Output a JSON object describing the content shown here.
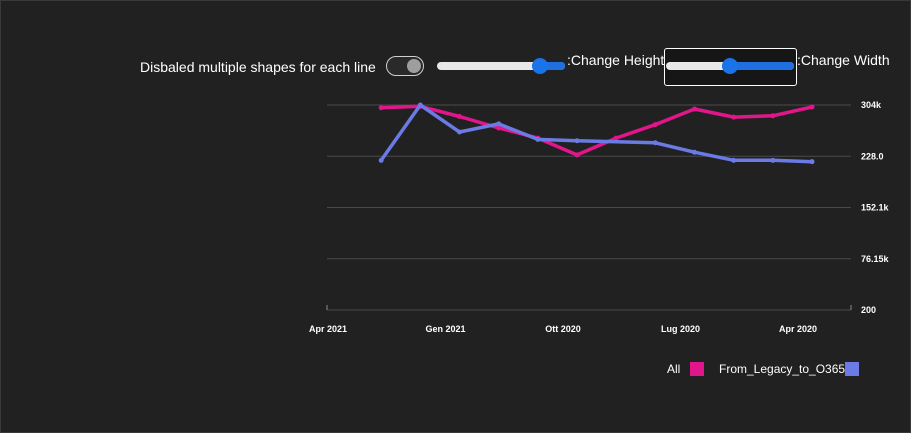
{
  "controls": {
    "toggle_label": "Disbaled multiple shapes for each line",
    "toggle_on": true,
    "height_label": ":Change Height",
    "height_value": 0.85,
    "width_label": ":Change Width",
    "width_value": 0.5
  },
  "colors": {
    "background": "#212121",
    "gridline": "#4a4a4a",
    "all": "#e0168a",
    "legacy": "#6b7be6"
  },
  "chart_data": {
    "type": "line",
    "x_ticks": [
      "Apr 2021",
      "Gen 2021",
      "Ott 2020",
      "Lug 2020",
      "Apr 2020"
    ],
    "y_ticks": [
      "304k",
      "228.0",
      "152.1k",
      "76.15k",
      "200"
    ],
    "ylim": [
      200,
      304000
    ],
    "x_axis_reversed": true,
    "y_axis_position": "right",
    "grid": true,
    "legend_position": "bottom-right",
    "series": [
      {
        "name": "All",
        "color": "#e0168a",
        "points": [
          {
            "x": "2021-03",
            "y": 300000
          },
          {
            "x": "2021-02",
            "y": 302000
          },
          {
            "x": "2021-01",
            "y": 287000
          },
          {
            "x": "2020-12",
            "y": 270000
          },
          {
            "x": "2020-11",
            "y": 255000
          },
          {
            "x": "2020-10",
            "y": 230000
          },
          {
            "x": "2020-09",
            "y": 255000
          },
          {
            "x": "2020-08",
            "y": 275000
          },
          {
            "x": "2020-07",
            "y": 298000
          },
          {
            "x": "2020-06",
            "y": 286000
          },
          {
            "x": "2020-05",
            "y": 288000
          },
          {
            "x": "2020-04",
            "y": 301000
          }
        ]
      },
      {
        "name": "From_Legacy_to_O365",
        "color": "#6b7be6",
        "points": [
          {
            "x": "2021-03",
            "y": 222000
          },
          {
            "x": "2021-02",
            "y": 304000
          },
          {
            "x": "2021-01",
            "y": 264000
          },
          {
            "x": "2020-12",
            "y": 276000
          },
          {
            "x": "2020-11",
            "y": 253000
          },
          {
            "x": "2020-10",
            "y": 251000
          },
          {
            "x": "2020-08",
            "y": 248000
          },
          {
            "x": "2020-07",
            "y": 234000
          },
          {
            "x": "2020-06",
            "y": 222000
          },
          {
            "x": "2020-05",
            "y": 222000
          },
          {
            "x": "2020-04",
            "y": 220000
          }
        ]
      }
    ]
  }
}
